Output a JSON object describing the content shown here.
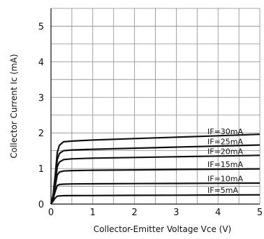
{
  "chart_data": {
    "type": "line",
    "xlabel": "Collector-Emitter Voltage Vce (V)",
    "ylabel": "Collector Current Ic (mA)",
    "xlim": [
      0,
      5
    ],
    "ylim": [
      0,
      5.5
    ],
    "x_ticks": [
      0,
      1,
      2,
      3,
      4,
      5
    ],
    "y_ticks": [
      0,
      1,
      2,
      3,
      4,
      5
    ],
    "grid": true,
    "x_grid_step": 0.5,
    "y_grid_step": 0.5,
    "series": [
      {
        "name": "IF=30mA",
        "x": [
          0,
          0.05,
          0.1,
          0.15,
          0.2,
          0.3,
          0.5,
          1,
          2,
          3,
          4,
          5
        ],
        "y": [
          0,
          0.25,
          0.8,
          1.45,
          1.65,
          1.75,
          1.77,
          1.8,
          1.84,
          1.88,
          1.92,
          1.96
        ]
      },
      {
        "name": "IF=25mA",
        "x": [
          0,
          0.05,
          0.1,
          0.15,
          0.2,
          0.3,
          0.5,
          1,
          2,
          3,
          4,
          5
        ],
        "y": [
          0,
          0.22,
          0.7,
          1.25,
          1.42,
          1.5,
          1.52,
          1.54,
          1.57,
          1.6,
          1.63,
          1.66
        ]
      },
      {
        "name": "IF=20mA",
        "x": [
          0,
          0.05,
          0.1,
          0.15,
          0.2,
          0.3,
          0.5,
          1,
          2,
          3,
          4,
          5
        ],
        "y": [
          0,
          0.2,
          0.6,
          1.05,
          1.18,
          1.25,
          1.27,
          1.29,
          1.31,
          1.33,
          1.35,
          1.37
        ]
      },
      {
        "name": "IF=15mA",
        "x": [
          0,
          0.05,
          0.1,
          0.15,
          0.2,
          0.3,
          0.5,
          1,
          2,
          3,
          4,
          5
        ],
        "y": [
          0,
          0.18,
          0.5,
          0.82,
          0.9,
          0.93,
          0.94,
          0.95,
          0.96,
          0.97,
          0.98,
          0.99
        ]
      },
      {
        "name": "IF=10mA",
        "x": [
          0,
          0.05,
          0.1,
          0.15,
          0.2,
          0.3,
          0.5,
          1,
          2,
          3,
          4,
          5
        ],
        "y": [
          0,
          0.14,
          0.35,
          0.52,
          0.55,
          0.56,
          0.565,
          0.57,
          0.575,
          0.58,
          0.585,
          0.59
        ]
      },
      {
        "name": "IF=5mA",
        "x": [
          0,
          0.05,
          0.1,
          0.15,
          0.2,
          0.3,
          0.5,
          1,
          2,
          3,
          4,
          5
        ],
        "y": [
          0,
          0.08,
          0.17,
          0.22,
          0.23,
          0.235,
          0.238,
          0.24,
          0.245,
          0.25,
          0.255,
          0.26
        ]
      }
    ],
    "colors": {
      "line": "#111111",
      "grid": "#8a8a8a",
      "background": "#ffffff"
    }
  }
}
